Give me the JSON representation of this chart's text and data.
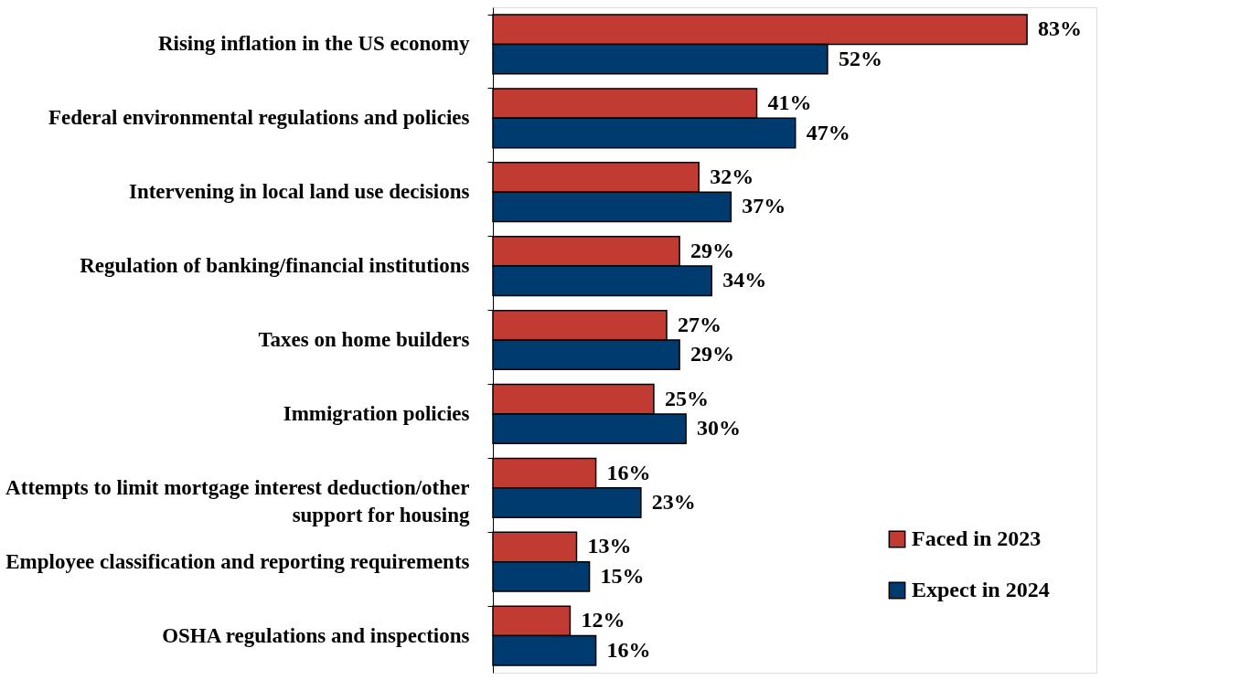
{
  "chart_data": {
    "type": "bar",
    "orientation": "horizontal",
    "legend": "bottom right",
    "categories": [
      "Rising inflation in the US economy",
      "Federal environmental regulations and policies",
      "Intervening in local land use decisions",
      "Regulation of banking/financial institutions",
      "Taxes on home builders",
      "Immigration policies",
      "Attempts to limit mortgage interest deduction/other\nsupport for housing",
      "Employee classification and reporting requirements",
      "OSHA regulations and inspections"
    ],
    "series": [
      {
        "name": "Faced in 2023",
        "color": "#c23b33",
        "values": [
          83,
          41,
          32,
          29,
          27,
          25,
          16,
          13,
          12
        ],
        "value_labels": [
          "83%",
          "41%",
          "32%",
          "29%",
          "27%",
          "25%",
          "16%",
          "13%",
          "12%"
        ]
      },
      {
        "name": "Expect in 2024",
        "color": "#003b6f",
        "values": [
          52,
          47,
          37,
          34,
          29,
          30,
          23,
          15,
          16
        ],
        "value_labels": [
          "52%",
          "47%",
          "37%",
          "34%",
          "29%",
          "30%",
          "23%",
          "15%",
          "16%"
        ]
      }
    ]
  }
}
